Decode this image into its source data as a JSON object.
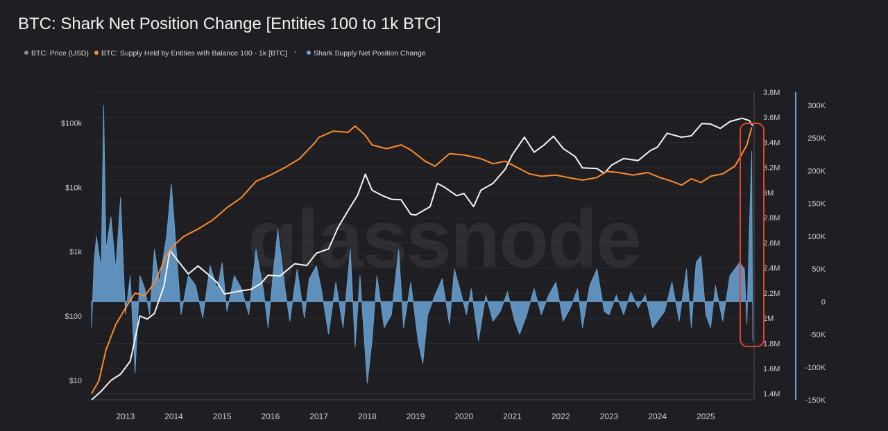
{
  "chart_data": {
    "type": "line",
    "title": "BTC: Shark Net Position Change [Entities 100 to 1k BTC]",
    "watermark": "glassnode",
    "legend_placement": "top-left",
    "legend": [
      {
        "label": "BTC: Price (USD)",
        "color": "#8a8a8a"
      },
      {
        "label": "BTC: Supply Held by Entities with Balance 100 - 1k [BTC]",
        "color": "#ff8c2b"
      },
      {
        "label": "-",
        "color": "#9a9a9a"
      },
      {
        "label": "Shark Supply Net Position Change",
        "color": "#6aa4d6"
      }
    ],
    "x_ticks": [
      "2013",
      "2014",
      "2015",
      "2016",
      "2017",
      "2018",
      "2019",
      "2020",
      "2021",
      "2022",
      "2023",
      "2024",
      "2025"
    ],
    "x_range": [
      2012.3,
      2025.97
    ],
    "axes": {
      "price": {
        "scale": "log",
        "range": [
          5,
          300000
        ],
        "ticks": [
          {
            "v": 10,
            "label": "$10"
          },
          {
            "v": 100,
            "label": "$100"
          },
          {
            "v": 1000,
            "label": "$1k"
          },
          {
            "v": 10000,
            "label": "$10k"
          },
          {
            "v": 100000,
            "label": "$100k"
          }
        ]
      },
      "supply": {
        "scale": "linear",
        "range": [
          1350000,
          3800000
        ],
        "ticks": [
          {
            "v": 1400000,
            "label": "1.4M"
          },
          {
            "v": 1600000,
            "label": "1.6M"
          },
          {
            "v": 1800000,
            "label": "1.8M"
          },
          {
            "v": 2000000,
            "label": "2M"
          },
          {
            "v": 2200000,
            "label": "2.2M"
          },
          {
            "v": 2400000,
            "label": "2.4M"
          },
          {
            "v": 2600000,
            "label": "2.6M"
          },
          {
            "v": 2800000,
            "label": "2.8M"
          },
          {
            "v": 3000000,
            "label": "3M"
          },
          {
            "v": 3200000,
            "label": "3.2M"
          },
          {
            "v": 3400000,
            "label": "3.4M"
          },
          {
            "v": 3600000,
            "label": "3.6M"
          },
          {
            "v": 3800000,
            "label": "3.8M"
          }
        ]
      },
      "change": {
        "scale": "linear",
        "range": [
          -150000,
          320000
        ],
        "ticks": [
          {
            "v": -150000,
            "label": "-150K"
          },
          {
            "v": -100000,
            "label": "-100K"
          },
          {
            "v": -50000,
            "label": "-50K"
          },
          {
            "v": 0,
            "label": "0"
          },
          {
            "v": 50000,
            "label": "50K"
          },
          {
            "v": 100000,
            "label": "100K"
          },
          {
            "v": 150000,
            "label": "150K"
          },
          {
            "v": 200000,
            "label": "200K"
          },
          {
            "v": 250000,
            "label": "250K"
          },
          {
            "v": 300000,
            "label": "300K"
          }
        ]
      }
    },
    "series": [
      {
        "name": "BTC: Price (USD)",
        "axis": "price",
        "color": "#f5f5f5",
        "points": [
          [
            2012.3,
            5
          ],
          [
            2012.5,
            6.8
          ],
          [
            2012.7,
            10
          ],
          [
            2012.9,
            12.5
          ],
          [
            2013.1,
            20
          ],
          [
            2013.3,
            100
          ],
          [
            2013.45,
            90
          ],
          [
            2013.6,
            110
          ],
          [
            2013.8,
            300
          ],
          [
            2013.92,
            1050
          ],
          [
            2014.1,
            700
          ],
          [
            2014.3,
            450
          ],
          [
            2014.5,
            600
          ],
          [
            2014.7,
            450
          ],
          [
            2014.9,
            330
          ],
          [
            2015.05,
            220
          ],
          [
            2015.3,
            240
          ],
          [
            2015.6,
            260
          ],
          [
            2015.8,
            320
          ],
          [
            2015.95,
            430
          ],
          [
            2016.2,
            420
          ],
          [
            2016.5,
            650
          ],
          [
            2016.75,
            610
          ],
          [
            2016.95,
            950
          ],
          [
            2017.2,
            1100
          ],
          [
            2017.4,
            2400
          ],
          [
            2017.6,
            4300
          ],
          [
            2017.8,
            7500
          ],
          [
            2017.96,
            16000
          ],
          [
            2018.1,
            9000
          ],
          [
            2018.3,
            7500
          ],
          [
            2018.5,
            6500
          ],
          [
            2018.7,
            6400
          ],
          [
            2018.9,
            3800
          ],
          [
            2019.0,
            3700
          ],
          [
            2019.3,
            5000
          ],
          [
            2019.45,
            11500
          ],
          [
            2019.6,
            10000
          ],
          [
            2019.85,
            7400
          ],
          [
            2020.0,
            8000
          ],
          [
            2020.2,
            5000
          ],
          [
            2020.35,
            9000
          ],
          [
            2020.6,
            11500
          ],
          [
            2020.85,
            19000
          ],
          [
            2021.0,
            32000
          ],
          [
            2021.25,
            60000
          ],
          [
            2021.45,
            35000
          ],
          [
            2021.65,
            45000
          ],
          [
            2021.85,
            62000
          ],
          [
            2022.05,
            40000
          ],
          [
            2022.3,
            30000
          ],
          [
            2022.45,
            20000
          ],
          [
            2022.75,
            19500
          ],
          [
            2022.9,
            16500
          ],
          [
            2023.05,
            22000
          ],
          [
            2023.3,
            28000
          ],
          [
            2023.6,
            26000
          ],
          [
            2023.85,
            37000
          ],
          [
            2024.0,
            42000
          ],
          [
            2024.2,
            69000
          ],
          [
            2024.5,
            60000
          ],
          [
            2024.7,
            63000
          ],
          [
            2024.92,
            98000
          ],
          [
            2025.1,
            96000
          ],
          [
            2025.3,
            82000
          ],
          [
            2025.5,
            105000
          ],
          [
            2025.75,
            118000
          ],
          [
            2025.9,
            109000
          ],
          [
            2025.97,
            90000
          ]
        ]
      },
      {
        "name": "BTC: Supply Held by Entities with Balance 100 - 1k [BTC]",
        "axis": "supply",
        "color": "#ff8c2b",
        "points": [
          [
            2012.3,
            1400000
          ],
          [
            2012.45,
            1500000
          ],
          [
            2012.6,
            1750000
          ],
          [
            2012.8,
            1950000
          ],
          [
            2013.0,
            2080000
          ],
          [
            2013.2,
            2200000
          ],
          [
            2013.4,
            2180000
          ],
          [
            2013.6,
            2280000
          ],
          [
            2013.85,
            2500000
          ],
          [
            2014.0,
            2580000
          ],
          [
            2014.2,
            2650000
          ],
          [
            2014.5,
            2710000
          ],
          [
            2014.8,
            2780000
          ],
          [
            2015.1,
            2880000
          ],
          [
            2015.4,
            2960000
          ],
          [
            2015.7,
            3090000
          ],
          [
            2016.0,
            3140000
          ],
          [
            2016.3,
            3200000
          ],
          [
            2016.6,
            3270000
          ],
          [
            2016.9,
            3390000
          ],
          [
            2017.0,
            3440000
          ],
          [
            2017.3,
            3490000
          ],
          [
            2017.6,
            3480000
          ],
          [
            2017.75,
            3530000
          ],
          [
            2017.95,
            3460000
          ],
          [
            2018.1,
            3380000
          ],
          [
            2018.4,
            3350000
          ],
          [
            2018.7,
            3380000
          ],
          [
            2018.9,
            3340000
          ],
          [
            2019.2,
            3250000
          ],
          [
            2019.4,
            3210000
          ],
          [
            2019.7,
            3310000
          ],
          [
            2020.0,
            3300000
          ],
          [
            2020.35,
            3270000
          ],
          [
            2020.6,
            3230000
          ],
          [
            2020.85,
            3250000
          ],
          [
            2021.1,
            3200000
          ],
          [
            2021.35,
            3150000
          ],
          [
            2021.6,
            3130000
          ],
          [
            2021.9,
            3140000
          ],
          [
            2022.15,
            3120000
          ],
          [
            2022.45,
            3100000
          ],
          [
            2022.75,
            3120000
          ],
          [
            2022.95,
            3170000
          ],
          [
            2023.2,
            3160000
          ],
          [
            2023.5,
            3140000
          ],
          [
            2023.8,
            3160000
          ],
          [
            2024.05,
            3120000
          ],
          [
            2024.3,
            3090000
          ],
          [
            2024.5,
            3060000
          ],
          [
            2024.7,
            3110000
          ],
          [
            2024.9,
            3080000
          ],
          [
            2025.1,
            3130000
          ],
          [
            2025.35,
            3150000
          ],
          [
            2025.6,
            3210000
          ],
          [
            2025.75,
            3310000
          ],
          [
            2025.85,
            3380000
          ],
          [
            2025.95,
            3520000
          ]
        ]
      },
      {
        "name": "Shark Supply Net Position Change",
        "axis": "change",
        "color": "#6aa4d6",
        "type": "area",
        "points": [
          [
            2012.3,
            -40000
          ],
          [
            2012.35,
            60000
          ],
          [
            2012.4,
            100000
          ],
          [
            2012.5,
            50000
          ],
          [
            2012.55,
            300000
          ],
          [
            2012.6,
            80000
          ],
          [
            2012.7,
            130000
          ],
          [
            2012.8,
            50000
          ],
          [
            2012.9,
            160000
          ],
          [
            2013.0,
            -20000
          ],
          [
            2013.1,
            40000
          ],
          [
            2013.2,
            -110000
          ],
          [
            2013.3,
            40000
          ],
          [
            2013.4,
            20000
          ],
          [
            2013.5,
            -20000
          ],
          [
            2013.6,
            80000
          ],
          [
            2013.7,
            30000
          ],
          [
            2013.85,
            100000
          ],
          [
            2013.95,
            180000
          ],
          [
            2014.05,
            80000
          ],
          [
            2014.15,
            -20000
          ],
          [
            2014.3,
            40000
          ],
          [
            2014.45,
            25000
          ],
          [
            2014.6,
            -25000
          ],
          [
            2014.75,
            55000
          ],
          [
            2014.9,
            20000
          ],
          [
            2015.0,
            60000
          ],
          [
            2015.1,
            -15000
          ],
          [
            2015.25,
            40000
          ],
          [
            2015.4,
            20000
          ],
          [
            2015.55,
            -20000
          ],
          [
            2015.7,
            80000
          ],
          [
            2015.85,
            20000
          ],
          [
            2015.95,
            -40000
          ],
          [
            2016.05,
            40000
          ],
          [
            2016.15,
            110000
          ],
          [
            2016.3,
            20000
          ],
          [
            2016.4,
            -30000
          ],
          [
            2016.55,
            50000
          ],
          [
            2016.7,
            -25000
          ],
          [
            2016.8,
            35000
          ],
          [
            2016.95,
            55000
          ],
          [
            2017.05,
            20000
          ],
          [
            2017.2,
            -50000
          ],
          [
            2017.35,
            30000
          ],
          [
            2017.5,
            -40000
          ],
          [
            2017.65,
            80000
          ],
          [
            2017.75,
            -70000
          ],
          [
            2017.85,
            40000
          ],
          [
            2017.95,
            -70000
          ],
          [
            2018.0,
            -125000
          ],
          [
            2018.1,
            -60000
          ],
          [
            2018.2,
            40000
          ],
          [
            2018.35,
            -40000
          ],
          [
            2018.5,
            -20000
          ],
          [
            2018.65,
            80000
          ],
          [
            2018.75,
            -40000
          ],
          [
            2018.9,
            30000
          ],
          [
            2019.05,
            -60000
          ],
          [
            2019.15,
            -95000
          ],
          [
            2019.25,
            -20000
          ],
          [
            2019.4,
            10000
          ],
          [
            2019.55,
            35000
          ],
          [
            2019.7,
            -35000
          ],
          [
            2019.8,
            50000
          ],
          [
            2019.95,
            10000
          ],
          [
            2020.05,
            -20000
          ],
          [
            2020.15,
            20000
          ],
          [
            2020.3,
            -60000
          ],
          [
            2020.45,
            10000
          ],
          [
            2020.6,
            -30000
          ],
          [
            2020.75,
            -15000
          ],
          [
            2020.9,
            15000
          ],
          [
            2021.05,
            -30000
          ],
          [
            2021.15,
            -50000
          ],
          [
            2021.3,
            -20000
          ],
          [
            2021.45,
            20000
          ],
          [
            2021.6,
            -20000
          ],
          [
            2021.75,
            10000
          ],
          [
            2021.9,
            30000
          ],
          [
            2022.05,
            -30000
          ],
          [
            2022.2,
            -10000
          ],
          [
            2022.35,
            20000
          ],
          [
            2022.45,
            -40000
          ],
          [
            2022.6,
            25000
          ],
          [
            2022.75,
            50000
          ],
          [
            2022.9,
            -15000
          ],
          [
            2023.0,
            -20000
          ],
          [
            2023.15,
            10000
          ],
          [
            2023.3,
            -20000
          ],
          [
            2023.45,
            15000
          ],
          [
            2023.6,
            -10000
          ],
          [
            2023.75,
            10000
          ],
          [
            2023.9,
            -40000
          ],
          [
            2024.05,
            -25000
          ],
          [
            2024.15,
            -15000
          ],
          [
            2024.3,
            30000
          ],
          [
            2024.45,
            -30000
          ],
          [
            2024.6,
            50000
          ],
          [
            2024.7,
            -40000
          ],
          [
            2024.8,
            60000
          ],
          [
            2024.9,
            70000
          ],
          [
            2025.0,
            -20000
          ],
          [
            2025.1,
            -40000
          ],
          [
            2025.2,
            25000
          ],
          [
            2025.35,
            -30000
          ],
          [
            2025.5,
            40000
          ],
          [
            2025.6,
            50000
          ],
          [
            2025.7,
            60000
          ],
          [
            2025.8,
            50000
          ],
          [
            2025.85,
            -35000
          ],
          [
            2025.9,
            110000
          ],
          [
            2025.95,
            230000
          ],
          [
            2025.97,
            -60000
          ]
        ]
      }
    ],
    "annotation": {
      "type": "highlight-box",
      "color": "#e0442e",
      "x_range": [
        2025.77,
        2025.97
      ],
      "placement": "right-edge"
    }
  }
}
